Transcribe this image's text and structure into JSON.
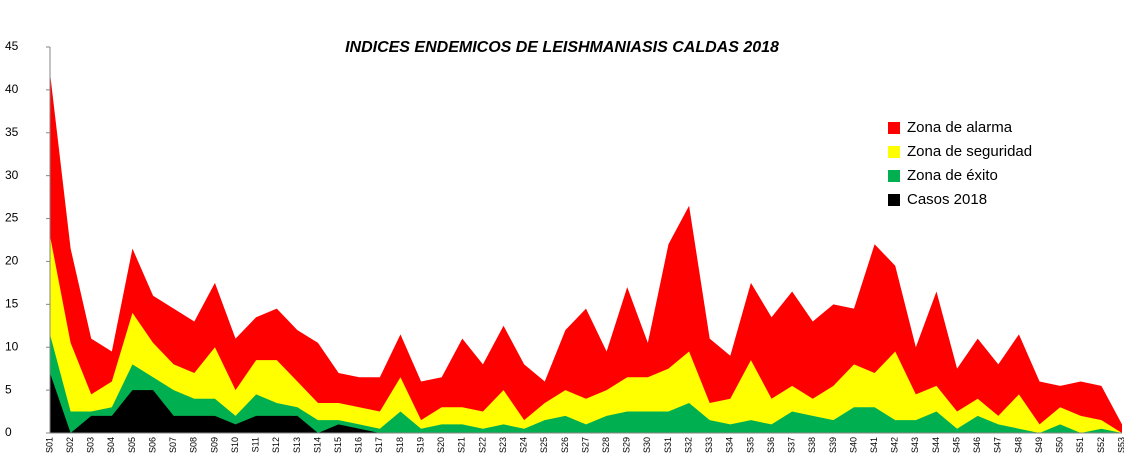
{
  "chart_data": {
    "type": "area",
    "title": "INDICES ENDEMICOS DE LEISHMANIASIS CALDAS 2018",
    "categories": [
      "S01",
      "S02",
      "S03",
      "S04",
      "S05",
      "S06",
      "S07",
      "S08",
      "S09",
      "S10",
      "S11",
      "S12",
      "S13",
      "S14",
      "S15",
      "S16",
      "S17",
      "S18",
      "S19",
      "S20",
      "S21",
      "S22",
      "S23",
      "S24",
      "S25",
      "S26",
      "S27",
      "S28",
      "S29",
      "S30",
      "S31",
      "S32",
      "S33",
      "S34",
      "S35",
      "S36",
      "S37",
      "S38",
      "S39",
      "S40",
      "S41",
      "S42",
      "S43",
      "S44",
      "S45",
      "S46",
      "S47",
      "S48",
      "S49",
      "S50",
      "S51",
      "S52",
      "S53"
    ],
    "series": [
      {
        "name": "Zona de alarma",
        "color": "#ff0000",
        "values": [
          42,
          21.5,
          11,
          9.5,
          21.5,
          16,
          14.5,
          13,
          17.5,
          11,
          13.5,
          14.5,
          12,
          10.5,
          7,
          6.5,
          6.5,
          11.5,
          6,
          6.5,
          11,
          8,
          12.5,
          8,
          6,
          12,
          14.5,
          9.5,
          17,
          10.5,
          22,
          26.5,
          11,
          9,
          17.5,
          13.5,
          16.5,
          13,
          15,
          14.5,
          22,
          19.5,
          10,
          16.5,
          7.5,
          11,
          8,
          11.5,
          6,
          5.5,
          6,
          5.5,
          1
        ]
      },
      {
        "name": "Zona de seguridad",
        "color": "#ffff00",
        "values": [
          23,
          10.5,
          4.5,
          6,
          14,
          10.5,
          8,
          7,
          10,
          5,
          8.5,
          8.5,
          6,
          3.5,
          3.5,
          3,
          2.5,
          6.5,
          1.5,
          3,
          3,
          2.5,
          5,
          1.5,
          3.5,
          5,
          4,
          5,
          6.5,
          6.5,
          7.5,
          9.5,
          3.5,
          4,
          8.5,
          4,
          5.5,
          4,
          5.5,
          8,
          7,
          9.5,
          4.5,
          5.5,
          2.5,
          4,
          2,
          4.5,
          1,
          3,
          2,
          1.5,
          0
        ]
      },
      {
        "name": "Zona de éxito",
        "color": "#00b050",
        "values": [
          11.5,
          2.5,
          2.5,
          3,
          8,
          6.5,
          5,
          4,
          4,
          2,
          4.5,
          3.5,
          3,
          1.5,
          1.5,
          1,
          0.5,
          2.5,
          0.5,
          1,
          1,
          0.5,
          1,
          0.5,
          1.5,
          2,
          1,
          2,
          2.5,
          2.5,
          2.5,
          3.5,
          1.5,
          1,
          1.5,
          1,
          2.5,
          2,
          1.5,
          3,
          3,
          1.5,
          1.5,
          2.5,
          0.5,
          2,
          1,
          0.5,
          0,
          1,
          0,
          0.5,
          0
        ]
      },
      {
        "name": "Casos 2018",
        "color": "#000000",
        "values": [
          7,
          0,
          2,
          2,
          5,
          5,
          2,
          2,
          2,
          1,
          2,
          2,
          2,
          0,
          1,
          0.5,
          0,
          0,
          0,
          0,
          0,
          0,
          0,
          0,
          0,
          0,
          0,
          0,
          0,
          0,
          0,
          0,
          0,
          0,
          0,
          0,
          0,
          0,
          0,
          0,
          0,
          0,
          0,
          0,
          0,
          0,
          0,
          0,
          0,
          0,
          0,
          0,
          0
        ]
      }
    ],
    "ylim": [
      0,
      45
    ],
    "yticks": [
      0,
      5,
      10,
      15,
      20,
      25,
      30,
      35,
      40,
      45
    ],
    "legend": "upper right"
  }
}
